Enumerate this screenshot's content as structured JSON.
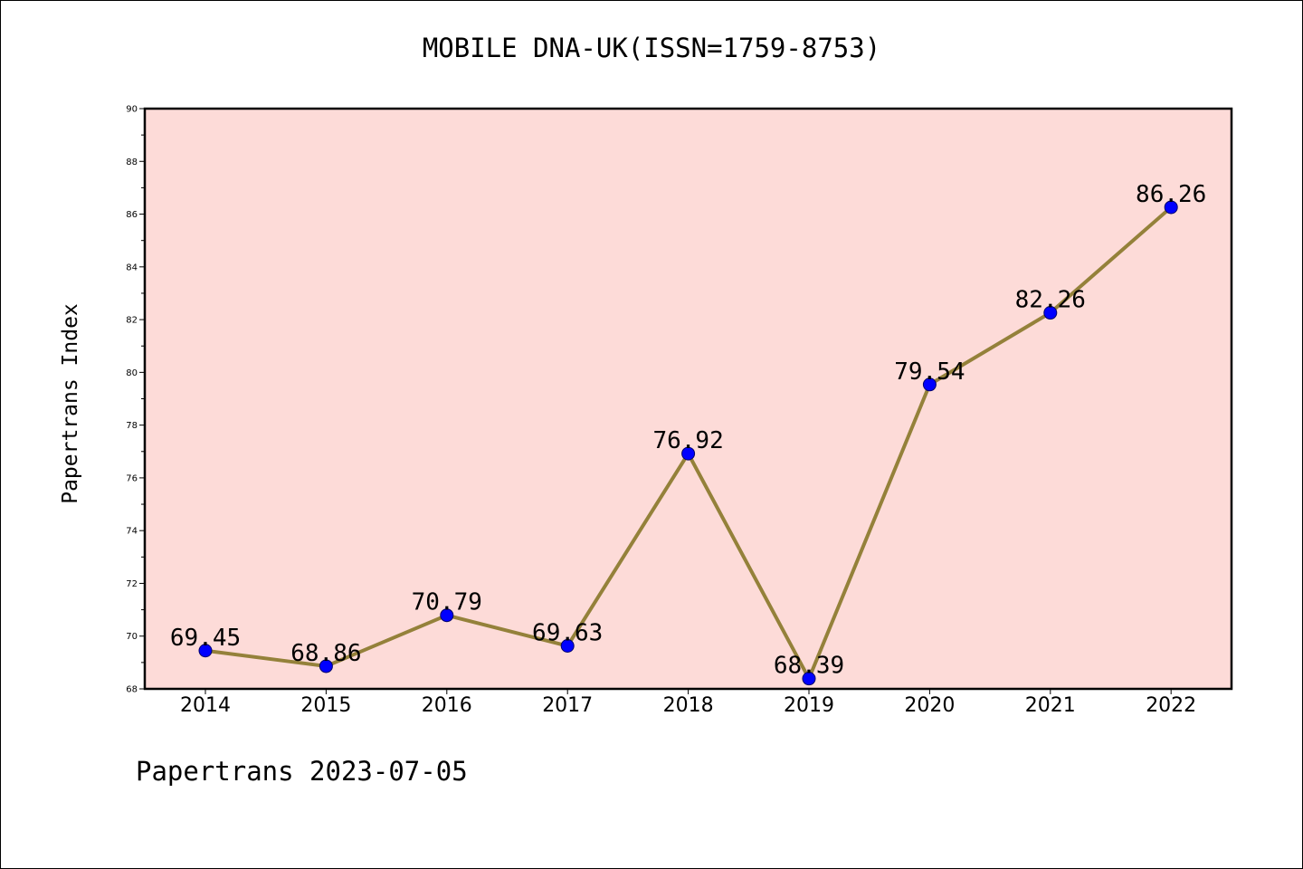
{
  "chart_data": {
    "type": "line",
    "title": "MOBILE DNA-UK(ISSN=1759-8753)",
    "xlabel": "",
    "ylabel": "Papertrans Index",
    "categories": [
      "2014",
      "2015",
      "2016",
      "2017",
      "2018",
      "2019",
      "2020",
      "2021",
      "2022"
    ],
    "series": [
      {
        "values": [
          69.45,
          68.86,
          70.79,
          69.63,
          76.92,
          68.39,
          79.54,
          82.26,
          86.26
        ],
        "labels": [
          "69.45",
          "68.86",
          "70.79",
          "69.63",
          "76.92",
          "68.39",
          "79.54",
          "82.26",
          "86.26"
        ]
      }
    ],
    "ylim": [
      68,
      90
    ],
    "yticks": [
      "68",
      "70",
      "72",
      "74",
      "76",
      "78",
      "80",
      "82",
      "84",
      "86",
      "88",
      "90"
    ],
    "grid": false,
    "colors": {
      "plot_background": "#fddbd8",
      "line": "#94813a",
      "marker": "#0000ff"
    }
  },
  "footer": "Papertrans 2023-07-05"
}
